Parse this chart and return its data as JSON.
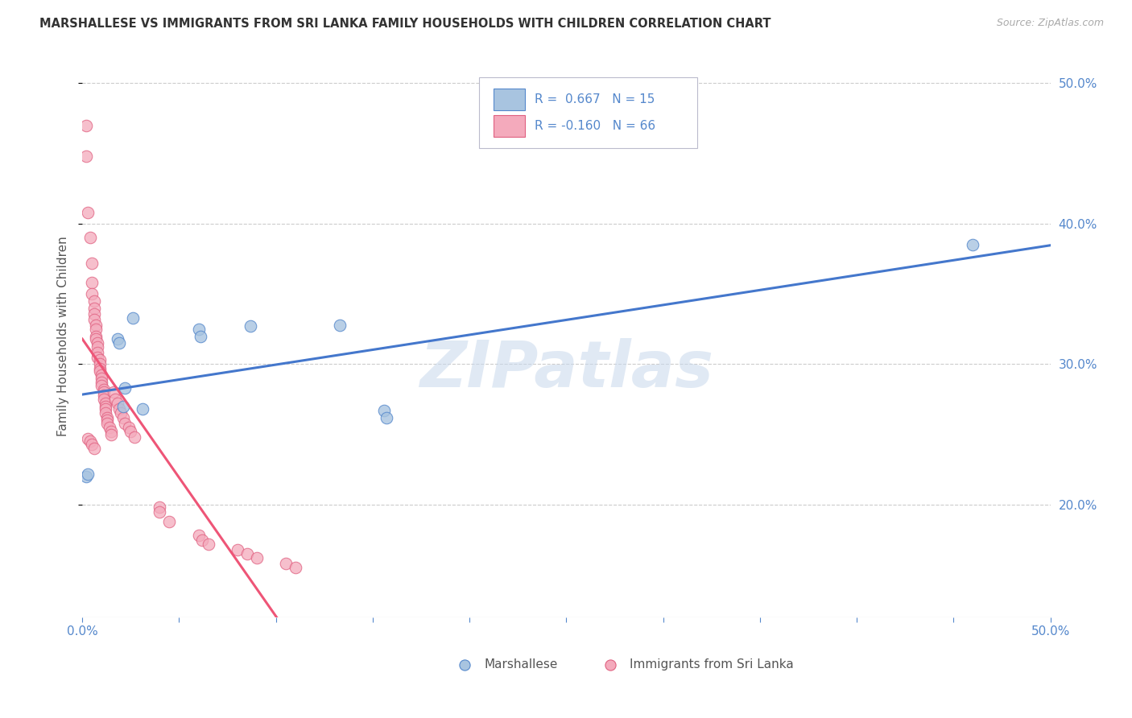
{
  "title": "MARSHALLESE VS IMMIGRANTS FROM SRI LANKA FAMILY HOUSEHOLDS WITH CHILDREN CORRELATION CHART",
  "source": "Source: ZipAtlas.com",
  "ylabel": "Family Households with Children",
  "xlim": [
    0.0,
    0.5
  ],
  "ylim": [
    0.12,
    0.52
  ],
  "yticks_right": [
    0.2,
    0.3,
    0.4,
    0.5
  ],
  "ytick_right_labels": [
    "20.0%",
    "30.0%",
    "40.0%",
    "50.0%"
  ],
  "legend_r_blue": "0.667",
  "legend_n_blue": "15",
  "legend_r_pink": "-0.160",
  "legend_n_pink": "66",
  "blue_color": "#A8C4E0",
  "blue_edge_color": "#5588CC",
  "pink_color": "#F4AABC",
  "pink_edge_color": "#E06080",
  "trendline_blue_color": "#4477CC",
  "trendline_pink_color": "#EE5577",
  "trendline_pink_dashed_color": "#DDAABC",
  "watermark": "ZIPatlas",
  "blue_scatter": [
    [
      0.002,
      0.22
    ],
    [
      0.003,
      0.222
    ],
    [
      0.018,
      0.318
    ],
    [
      0.019,
      0.315
    ],
    [
      0.021,
      0.27
    ],
    [
      0.022,
      0.283
    ],
    [
      0.026,
      0.333
    ],
    [
      0.031,
      0.268
    ],
    [
      0.06,
      0.325
    ],
    [
      0.061,
      0.32
    ],
    [
      0.087,
      0.327
    ],
    [
      0.133,
      0.328
    ],
    [
      0.156,
      0.267
    ],
    [
      0.157,
      0.262
    ],
    [
      0.46,
      0.385
    ]
  ],
  "pink_scatter": [
    [
      0.002,
      0.47
    ],
    [
      0.002,
      0.448
    ],
    [
      0.003,
      0.408
    ],
    [
      0.004,
      0.39
    ],
    [
      0.005,
      0.372
    ],
    [
      0.005,
      0.358
    ],
    [
      0.005,
      0.35
    ],
    [
      0.006,
      0.345
    ],
    [
      0.006,
      0.34
    ],
    [
      0.006,
      0.336
    ],
    [
      0.006,
      0.332
    ],
    [
      0.007,
      0.328
    ],
    [
      0.007,
      0.325
    ],
    [
      0.007,
      0.32
    ],
    [
      0.007,
      0.318
    ],
    [
      0.008,
      0.315
    ],
    [
      0.008,
      0.312
    ],
    [
      0.008,
      0.308
    ],
    [
      0.008,
      0.305
    ],
    [
      0.009,
      0.303
    ],
    [
      0.009,
      0.3
    ],
    [
      0.009,
      0.297
    ],
    [
      0.009,
      0.295
    ],
    [
      0.01,
      0.292
    ],
    [
      0.01,
      0.29
    ],
    [
      0.01,
      0.287
    ],
    [
      0.01,
      0.285
    ],
    [
      0.011,
      0.282
    ],
    [
      0.011,
      0.28
    ],
    [
      0.011,
      0.278
    ],
    [
      0.011,
      0.275
    ],
    [
      0.012,
      0.272
    ],
    [
      0.012,
      0.27
    ],
    [
      0.012,
      0.268
    ],
    [
      0.012,
      0.265
    ],
    [
      0.013,
      0.262
    ],
    [
      0.013,
      0.26
    ],
    [
      0.013,
      0.258
    ],
    [
      0.014,
      0.255
    ],
    [
      0.015,
      0.252
    ],
    [
      0.015,
      0.25
    ],
    [
      0.016,
      0.28
    ],
    [
      0.017,
      0.275
    ],
    [
      0.018,
      0.272
    ],
    [
      0.019,
      0.268
    ],
    [
      0.02,
      0.265
    ],
    [
      0.021,
      0.262
    ],
    [
      0.022,
      0.258
    ],
    [
      0.024,
      0.255
    ],
    [
      0.025,
      0.252
    ],
    [
      0.027,
      0.248
    ],
    [
      0.003,
      0.247
    ],
    [
      0.004,
      0.245
    ],
    [
      0.005,
      0.243
    ],
    [
      0.006,
      0.24
    ],
    [
      0.04,
      0.198
    ],
    [
      0.04,
      0.195
    ],
    [
      0.045,
      0.188
    ],
    [
      0.06,
      0.178
    ],
    [
      0.062,
      0.175
    ],
    [
      0.065,
      0.172
    ],
    [
      0.08,
      0.168
    ],
    [
      0.085,
      0.165
    ],
    [
      0.09,
      0.162
    ],
    [
      0.105,
      0.158
    ],
    [
      0.11,
      0.155
    ]
  ],
  "background_color": "#FFFFFF",
  "grid_color": "#CCCCCC"
}
